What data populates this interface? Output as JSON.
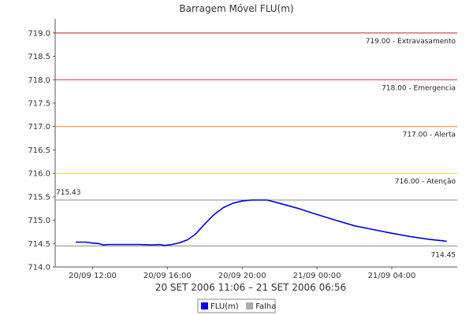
{
  "chart_data": {
    "type": "line",
    "title": "Barragem Móvel FLU(m)",
    "date_range_label": "20 SET 2006 11:06 – 21 SET 2006 06:56",
    "ylim": [
      714.0,
      719.3
    ],
    "y_ticks": [
      "714.0",
      "714.5",
      "715.0",
      "715.5",
      "716.0",
      "716.5",
      "717.0",
      "717.5",
      "718.0",
      "718.5",
      "719.0"
    ],
    "y_tick_values": [
      714.0,
      714.5,
      715.0,
      715.5,
      716.0,
      716.5,
      717.0,
      717.5,
      718.0,
      718.5,
      719.0
    ],
    "x_range": [
      "2006-09-20 10:00",
      "2006-09-21 07:30"
    ],
    "x_ticks": [
      {
        "time": "2006-09-20 12:00",
        "label": "20/09 12:00"
      },
      {
        "time": "2006-09-20 16:00",
        "label": "20/09 16:00"
      },
      {
        "time": "2006-09-20 20:00",
        "label": "20/09 20:00"
      },
      {
        "time": "2006-09-21 00:00",
        "label": "21/09 00:00"
      },
      {
        "time": "2006-09-21 04:00",
        "label": "21/09 04:00"
      }
    ],
    "grid": false,
    "threshold_lines": [
      {
        "value": 719.0,
        "label": "719.00 - Extravasamento",
        "color": "#c81e1e"
      },
      {
        "value": 718.0,
        "label": "718.00 - Emergencia",
        "color": "#c8288c"
      },
      {
        "value": 717.0,
        "label": "717.00 - Alerta",
        "color": "#f08c14"
      },
      {
        "value": 716.0,
        "label": "716.00 - Atenção",
        "color": "#f0c828"
      }
    ],
    "max_line": {
      "value": 715.43,
      "label": "715.43",
      "color": "#888888"
    },
    "min_line": {
      "value": 714.45,
      "label": "714.45",
      "color": "#888888"
    },
    "series": [
      {
        "name": "FLU(m)",
        "color": "#0000dd",
        "points": [
          [
            "2006-09-20 11:06",
            714.53
          ],
          [
            "2006-09-20 11:40",
            714.53
          ],
          [
            "2006-09-20 12:00",
            714.51
          ],
          [
            "2006-09-20 12:20",
            714.5
          ],
          [
            "2006-09-20 12:35",
            714.47
          ],
          [
            "2006-09-20 12:50",
            714.48
          ],
          [
            "2006-09-20 13:30",
            714.48
          ],
          [
            "2006-09-20 14:30",
            714.48
          ],
          [
            "2006-09-20 15:10",
            714.47
          ],
          [
            "2006-09-20 15:35",
            714.48
          ],
          [
            "2006-09-20 15:50",
            714.46
          ],
          [
            "2006-09-20 16:15",
            714.48
          ],
          [
            "2006-09-20 16:40",
            714.52
          ],
          [
            "2006-09-20 17:05",
            714.58
          ],
          [
            "2006-09-20 17:30",
            714.7
          ],
          [
            "2006-09-20 18:00",
            714.92
          ],
          [
            "2006-09-20 18:30",
            715.12
          ],
          [
            "2006-09-20 19:00",
            715.27
          ],
          [
            "2006-09-20 19:30",
            715.36
          ],
          [
            "2006-09-20 20:00",
            715.41
          ],
          [
            "2006-09-20 20:30",
            715.43
          ],
          [
            "2006-09-20 21:00",
            715.43
          ],
          [
            "2006-09-20 21:20",
            715.43
          ],
          [
            "2006-09-20 22:00",
            715.36
          ],
          [
            "2006-09-20 23:00",
            715.25
          ],
          [
            "2006-09-21 00:00",
            715.12
          ],
          [
            "2006-09-21 01:00",
            715.0
          ],
          [
            "2006-09-21 02:00",
            714.88
          ],
          [
            "2006-09-21 03:00",
            714.8
          ],
          [
            "2006-09-21 04:00",
            714.72
          ],
          [
            "2006-09-21 05:00",
            714.65
          ],
          [
            "2006-09-21 06:00",
            714.59
          ],
          [
            "2006-09-21 06:56",
            714.55
          ]
        ]
      }
    ],
    "legend": [
      {
        "name": "FLU(m)",
        "color": "#0000ee"
      },
      {
        "name": "Falha",
        "color": "#aaaaaa"
      }
    ],
    "legend_position": "bottom-center"
  }
}
